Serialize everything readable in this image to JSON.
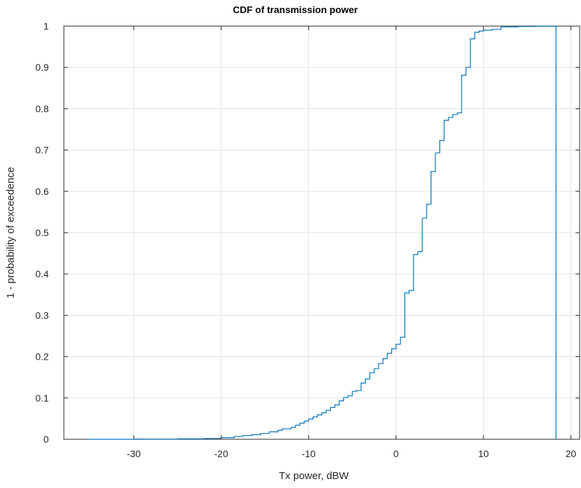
{
  "chart_data": {
    "type": "line",
    "title": "CDF of transmission power",
    "xlabel": "Tx power, dBW",
    "ylabel": "1 - probability of exceedence",
    "xlim": [
      -38,
      21
    ],
    "ylim": [
      0,
      1
    ],
    "xticks": [
      -30,
      -20,
      -10,
      0,
      10,
      20
    ],
    "yticks": [
      0,
      0.1,
      0.2,
      0.3,
      0.4,
      0.5,
      0.6,
      0.7,
      0.8,
      0.9,
      1
    ],
    "xtick_labels": [
      "-30",
      "-20",
      "-10",
      "0",
      "10",
      "20"
    ],
    "ytick_labels": [
      "0",
      "0.1",
      "0.2",
      "0.3",
      "0.4",
      "0.5",
      "0.6",
      "0.7",
      "0.8",
      "0.9",
      "1"
    ],
    "grid": true,
    "line_color": "#0072BD",
    "step": true,
    "series": [
      {
        "x": [
          -35.2,
          -30,
          -25,
          -22,
          -20,
          -18.5,
          -17.5,
          -16.5,
          -15.5,
          -14.5,
          -13.5,
          -13,
          -12,
          -11.5,
          -11,
          -10.5,
          -10,
          -9.5,
          -9,
          -8.5,
          -8,
          -7.5,
          -7,
          -6.5,
          -6,
          -5.5,
          -5,
          -4.5,
          -4,
          -3.5,
          -3,
          -2.5,
          -2,
          -1.5,
          -1,
          -0.5,
          0,
          0.5,
          1,
          1.5,
          2,
          2.5,
          3,
          3.5,
          4,
          4.5,
          5,
          5.5,
          6,
          6.5,
          7,
          7.5,
          8,
          8.5,
          9,
          9.5,
          10,
          11,
          12,
          14,
          16,
          18.3,
          18.3
        ],
        "y": [
          0,
          0.0005,
          0.001,
          0.002,
          0.004,
          0.007,
          0.009,
          0.011,
          0.014,
          0.018,
          0.022,
          0.025,
          0.029,
          0.034,
          0.039,
          0.044,
          0.049,
          0.054,
          0.059,
          0.064,
          0.07,
          0.077,
          0.083,
          0.093,
          0.101,
          0.105,
          0.116,
          0.118,
          0.136,
          0.146,
          0.161,
          0.171,
          0.183,
          0.195,
          0.208,
          0.219,
          0.23,
          0.247,
          0.354,
          0.36,
          0.447,
          0.454,
          0.535,
          0.569,
          0.648,
          0.693,
          0.723,
          0.772,
          0.779,
          0.786,
          0.79,
          0.881,
          0.9,
          0.969,
          0.985,
          0.988,
          0.99,
          0.992,
          0.998,
          0.999,
          0.9995,
          1,
          0
        ]
      }
    ]
  }
}
